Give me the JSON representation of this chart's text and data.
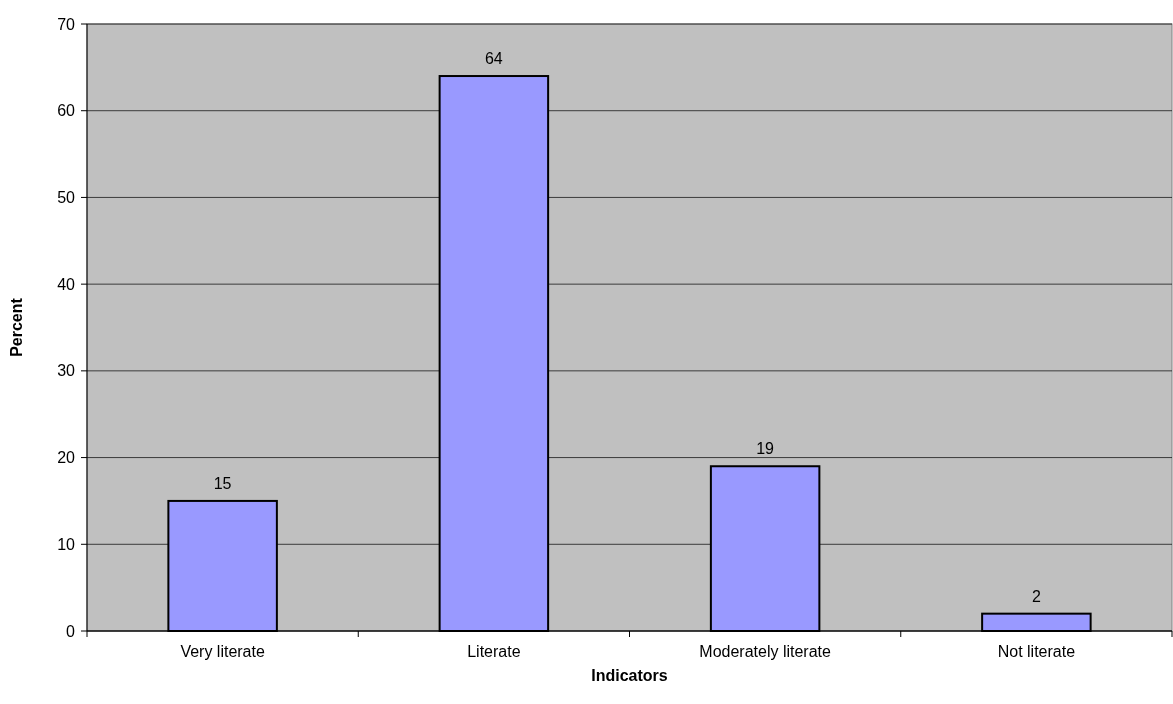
{
  "chart_data": {
    "type": "bar",
    "xlabel": "Indicators",
    "ylabel": "Percent",
    "categories": [
      "Very literate",
      "Literate",
      "Moderately literate",
      "Not literate"
    ],
    "values": [
      15,
      64,
      19,
      2
    ],
    "color": "#9999ff",
    "ylim": [
      0,
      70
    ],
    "yticks": [
      0,
      10,
      20,
      30,
      40,
      50,
      60,
      70
    ],
    "grid": "y",
    "data_labels": true
  }
}
